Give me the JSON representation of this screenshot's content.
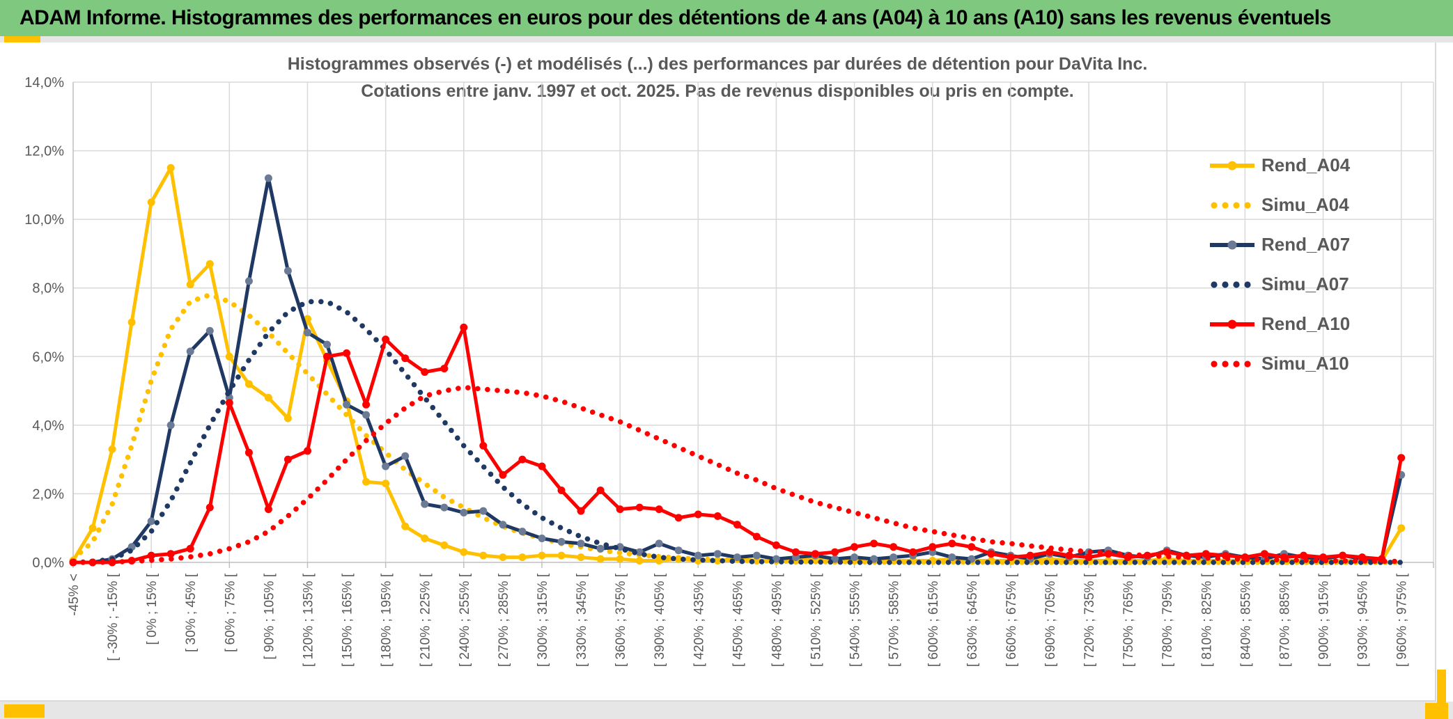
{
  "header": {
    "title": "ADAM Informe. Histogrammes des performances en euros pour des détentions de 4 ans (A04) à 10 ans (A10) sans les revenus éventuels"
  },
  "colors": {
    "header_green": "#7FC87F",
    "accent_yellow": "#FFC000",
    "grid": "#D9D9D9",
    "axis": "#BFBFBF",
    "text_gray": "#595959",
    "gold": "#FFC000",
    "navy": "#1F3864",
    "navy_marker": "#6C7B95",
    "red": "#FF0000"
  },
  "chart_data": {
    "type": "line",
    "title_lines": [
      "Histogrammes observés (-) et modélisés (...) des performances par durées de détention pour DaVita Inc.",
      "Cotations entre janv. 1997 et oct. 2025. Pas de revenus disponibles ou pris en compte."
    ],
    "grid": true,
    "legend_position": "right",
    "y_axis": {
      "unit": "%",
      "min": 0,
      "max": 14,
      "tick_step": 2,
      "tick_labels": [
        "0,0%",
        "2,0%",
        "4,0%",
        "6,0%",
        "8,0%",
        "10,0%",
        "12,0%",
        "14,0%"
      ]
    },
    "x_axis": {
      "bins_total": 69,
      "bins_per_label": 2,
      "tick_labels": [
        "-45% <",
        "[ -30% ; -15% [",
        "[ 0% ; 15% [",
        "[ 30% ; 45% [",
        "[ 60% ; 75% [",
        "[ 90% ; 105% [",
        "[ 120% ; 135% [",
        "[ 150% ; 165% [",
        "[ 180% ; 195% [",
        "[ 210% ; 225% [",
        "[ 240% ; 255% [",
        "[ 270% ; 285% [",
        "[ 300% ; 315% [",
        "[ 330% ; 345% [",
        "[ 360% ; 375% [",
        "[ 390% ; 405% [",
        "[ 420% ; 435% [",
        "[ 450% ; 465% [",
        "[ 480% ; 495% [",
        "[ 510% ; 525% [",
        "[ 540% ; 555% [",
        "[ 570% ; 585% [",
        "[ 600% ; 615% [",
        "[ 630% ; 645% [",
        "[ 660% ; 675% [",
        "[ 690% ; 705% [",
        "[ 720% ; 735% [",
        "[ 750% ; 765% [",
        "[ 780% ; 795% [",
        "[ 810% ; 825% [",
        "[ 840% ; 855% [",
        "[ 870% ; 885% [",
        "[ 900% ; 915% [",
        "[ 930% ; 945% [",
        "[ 960% ; 975% ["
      ]
    },
    "series": [
      {
        "name": "Rend_A04",
        "style": "solid",
        "color": "#FFC000",
        "marker_color": "#FFC000",
        "values": [
          0.05,
          1,
          3.3,
          7,
          10.5,
          11.5,
          8.1,
          8.7,
          6,
          5.2,
          4.8,
          4.2,
          7.1,
          5.9,
          4.7,
          2.35,
          2.3,
          1.05,
          0.7,
          0.5,
          0.3,
          0.2,
          0.15,
          0.15,
          0.2,
          0.2,
          0.15,
          0.1,
          0.1,
          0.05,
          0.05,
          0.1,
          0.05,
          0.05,
          0.1,
          0.05,
          0.05,
          0.05,
          0.1,
          0.05,
          0.05,
          0.1,
          0.05,
          0.05,
          0.05,
          0.1,
          0.05,
          0.05,
          0.05,
          0.05,
          0.1,
          0.05,
          0.05,
          0.05,
          0.05,
          0.05,
          0.1,
          0.05,
          0.05,
          0.05,
          0.05,
          0.05,
          0.05,
          0.05,
          0.05,
          0.05,
          0.05,
          0.05,
          1.0
        ]
      },
      {
        "name": "Simu_A04",
        "style": "dotted",
        "color": "#FFC000",
        "values": [
          0.1,
          0.6,
          1.7,
          3.4,
          5.3,
          6.8,
          7.6,
          7.8,
          7.6,
          7.2,
          6.7,
          6.1,
          5.5,
          4.9,
          4.3,
          3.7,
          3.2,
          2.7,
          2.3,
          1.9,
          1.6,
          1.3,
          1.05,
          0.85,
          0.7,
          0.55,
          0.45,
          0.35,
          0.28,
          0.22,
          0.17,
          0.13,
          0.1,
          0.08,
          0.06,
          0.05,
          0.04,
          0.03,
          0.02,
          0.02,
          0.02,
          0.01,
          0.01,
          0.01,
          0.01,
          0.01,
          0.01,
          0.01,
          0,
          0,
          0,
          0,
          0,
          0,
          0,
          0,
          0,
          0,
          0,
          0,
          0,
          0,
          0,
          0,
          0,
          0,
          0,
          0,
          0
        ]
      },
      {
        "name": "Rend_A07",
        "style": "solid",
        "color": "#1F3864",
        "marker_color": "#6C7B95",
        "values": [
          0,
          0,
          0.1,
          0.45,
          1.2,
          4,
          6.15,
          6.75,
          4.8,
          8.2,
          11.2,
          8.5,
          6.7,
          6.35,
          4.6,
          4.3,
          2.8,
          3.1,
          1.7,
          1.6,
          1.45,
          1.5,
          1.1,
          0.9,
          0.7,
          0.6,
          0.55,
          0.4,
          0.45,
          0.3,
          0.55,
          0.35,
          0.2,
          0.25,
          0.15,
          0.2,
          0.1,
          0.15,
          0.2,
          0.1,
          0.15,
          0.1,
          0.15,
          0.2,
          0.3,
          0.15,
          0.1,
          0.3,
          0.2,
          0.1,
          0.25,
          0.15,
          0.3,
          0.35,
          0.2,
          0.15,
          0.35,
          0.2,
          0.15,
          0.25,
          0.15,
          0.1,
          0.25,
          0.15,
          0.1,
          0.2,
          0.1,
          0.1,
          2.55
        ]
      },
      {
        "name": "Simu_A07",
        "style": "dotted",
        "color": "#1F3864",
        "values": [
          0,
          0.02,
          0.1,
          0.35,
          0.9,
          1.8,
          2.9,
          4,
          5,
          5.9,
          6.7,
          7.3,
          7.6,
          7.6,
          7.3,
          6.8,
          6.2,
          5.5,
          4.8,
          4.1,
          3.4,
          2.8,
          2.2,
          1.7,
          1.3,
          1,
          0.75,
          0.55,
          0.4,
          0.25,
          0.15,
          0.1,
          0.07,
          0.05,
          0.03,
          0.02,
          0.02,
          0.01,
          0.01,
          0.01,
          0,
          0,
          0,
          0,
          0,
          0,
          0,
          0,
          0,
          0,
          0,
          0,
          0,
          0,
          0,
          0,
          0,
          0,
          0,
          0,
          0,
          0,
          0,
          0,
          0,
          0,
          0,
          0,
          0
        ]
      },
      {
        "name": "Rend_A10",
        "style": "solid",
        "color": "#FF0000",
        "marker_color": "#FF0000",
        "values": [
          0,
          0,
          0,
          0.05,
          0.2,
          0.25,
          0.4,
          1.6,
          4.65,
          3.2,
          1.55,
          3,
          3.25,
          6,
          6.1,
          4.6,
          6.5,
          5.95,
          5.55,
          5.65,
          6.85,
          3.4,
          2.55,
          3,
          2.8,
          2.1,
          1.5,
          2.1,
          1.55,
          1.6,
          1.55,
          1.3,
          1.4,
          1.35,
          1.1,
          0.75,
          0.5,
          0.3,
          0.25,
          0.3,
          0.45,
          0.55,
          0.45,
          0.3,
          0.45,
          0.55,
          0.45,
          0.25,
          0.15,
          0.2,
          0.3,
          0.2,
          0.15,
          0.25,
          0.15,
          0.2,
          0.3,
          0.2,
          0.25,
          0.2,
          0.15,
          0.25,
          0.15,
          0.2,
          0.15,
          0.2,
          0.15,
          0.1,
          3.05
        ]
      },
      {
        "name": "Simu_A10",
        "style": "dotted",
        "color": "#FF0000",
        "values": [
          0,
          0,
          0.01,
          0.03,
          0.06,
          0.1,
          0.16,
          0.25,
          0.4,
          0.6,
          0.9,
          1.35,
          1.85,
          2.4,
          3,
          3.55,
          4.05,
          4.5,
          4.85,
          5,
          5.1,
          5.05,
          5,
          4.95,
          4.85,
          4.7,
          4.5,
          4.3,
          4.1,
          3.85,
          3.6,
          3.35,
          3.1,
          2.85,
          2.6,
          2.4,
          2.15,
          1.95,
          1.75,
          1.6,
          1.45,
          1.3,
          1.15,
          1,
          0.9,
          0.8,
          0.7,
          0.6,
          0.55,
          0.48,
          0.42,
          0.36,
          0.31,
          0.27,
          0.23,
          0.2,
          0.17,
          0.15,
          0.13,
          0.11,
          0.09,
          0.08,
          0.07,
          0.06,
          0.05,
          0.04,
          0.04,
          0.03,
          0.03
        ]
      }
    ]
  }
}
